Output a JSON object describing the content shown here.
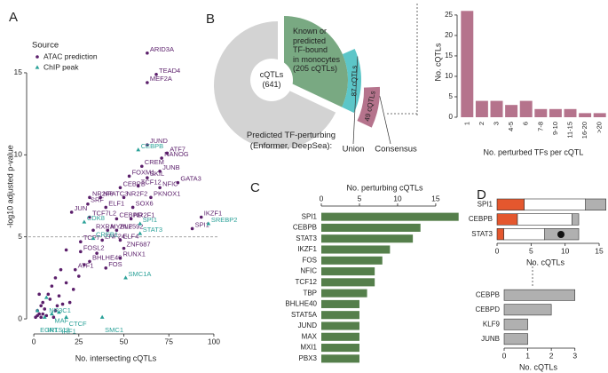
{
  "chart_data": [
    {
      "type": "scatter",
      "panel": "A",
      "xlabel": "No. intersecting cQTLs",
      "ylabel": "-log10 adjusted p-value",
      "xlim": [
        -3,
        102
      ],
      "ylim": [
        -0.7,
        17
      ],
      "xticks": [
        0,
        25,
        50,
        75,
        100
      ],
      "yticks": [
        0,
        5,
        10,
        15
      ],
      "threshold": 5,
      "legend_title": "Source",
      "series": [
        {
          "name": "ATAC prediction",
          "color": "#5b1f6b",
          "marker": "circle",
          "x": [
            63,
            68,
            63,
            63,
            74,
            71,
            70,
            60,
            63,
            53,
            58,
            70,
            80,
            48,
            31,
            37,
            50,
            65,
            30,
            40,
            55,
            21,
            31,
            46,
            54,
            93,
            33,
            41,
            46,
            88,
            26,
            38,
            48,
            50,
            26,
            31,
            48,
            23,
            40,
            12,
            15,
            18,
            22,
            8,
            10,
            5,
            6,
            3,
            4,
            2,
            7,
            9,
            14,
            16,
            20,
            25,
            28,
            12,
            3,
            18,
            35,
            1,
            2,
            4,
            5,
            11,
            13
          ],
          "values": [
            16.2,
            14.9,
            14.4,
            10.6,
            10.1,
            9.8,
            9.0,
            9.3,
            8.6,
            8.7,
            8.1,
            8.0,
            8.3,
            8.0,
            7.4,
            7.4,
            7.4,
            7.4,
            7.0,
            6.8,
            6.8,
            6.5,
            6.2,
            6.1,
            6.1,
            6.2,
            5.4,
            5.4,
            5.4,
            5.5,
            4.7,
            4.8,
            4.8,
            4.3,
            4.1,
            3.5,
            3.7,
            3.0,
            3.1,
            2.5,
            3.0,
            2.2,
            1.8,
            1.5,
            2.0,
            1.0,
            0.6,
            0.3,
            0.8,
            0.5,
            0.2,
            1.2,
            1.4,
            0.9,
            1.0,
            2.6,
            3.3,
            0.5,
            1.5,
            4.2,
            4.0,
            0.1,
            0.2,
            0.1,
            0.3,
            0.1,
            0.8
          ],
          "labels": [
            "ARID3A",
            "TEAD4",
            "MEF2A",
            "JUND",
            "ATF7",
            "NANOG",
            "JUNB",
            "CREM",
            "SKIL",
            "FOXM1",
            "TCF12",
            "NFIC",
            "GATA3",
            "CEBPB",
            "NR2F6",
            "NFATC3",
            "NR2F2",
            "PKNOX1",
            "SRF",
            "ELF1",
            "SOX6",
            "JUN",
            "TCF7L2",
            "CEBPD",
            "NR2F1",
            "IKZF1",
            "RXRA",
            "MYBL2",
            "ZNF592",
            "SPI1",
            "TCF7",
            "ZNF24",
            "ELF4",
            "ZNF687",
            "FOSL2",
            "BHLHE40",
            "RUNX1",
            "ATF1",
            "FOS",
            null,
            null,
            null,
            null,
            null,
            null,
            null,
            null,
            null,
            null,
            null,
            null,
            null,
            null,
            null,
            null,
            null,
            null,
            null,
            null,
            null,
            null,
            null,
            null,
            null,
            null,
            null,
            null
          ]
        },
        {
          "name": "ChIP peak",
          "color": "#2aa198",
          "marker": "triangle",
          "x": [
            58,
            28,
            59,
            59,
            97,
            33,
            51,
            7,
            2,
            10,
            38,
            14,
            18,
            6
          ],
          "values": [
            10.3,
            5.9,
            5.8,
            5.2,
            5.8,
            4.9,
            2.5,
            1.3,
            0.5,
            0.3,
            0.1,
            0.4,
            0.1,
            0.1
          ],
          "labels": [
            "CEBPB",
            "CDK8",
            "SPI1",
            "STAT3",
            "SREBP2",
            "CREB1",
            "SMC1A",
            "NR3C1",
            "EGR1",
            "MAF",
            "SMC1",
            "IRF1",
            "CTCF",
            "INTS13"
          ]
        }
      ]
    },
    {
      "type": "pie",
      "panel": "B",
      "values": [
        641,
        205,
        87,
        49
      ],
      "value_labels": [
        "cQTLs\n(641)",
        "Known or\npredicted\nTF-bound\nin monocytes\n(205 cQTLs)",
        "87 cQTLs",
        "49 cQTLs"
      ],
      "colors": [
        "#d3d3d3",
        "#79a982",
        "#5cc6c8",
        "#b5738c"
      ],
      "annotation": "Predicted TF-perturbing\n(Enformer, DeepSea):",
      "ring_labels": [
        "Union",
        "Consensus"
      ]
    },
    {
      "type": "bar",
      "categories": [
        "1",
        "2",
        "3",
        "4-5",
        "6",
        "7-8",
        "9-10",
        "11-15",
        "16-20",
        ">20"
      ],
      "values": [
        26,
        4,
        4,
        3,
        4,
        2,
        2,
        2,
        1,
        1
      ],
      "color": "#b5738c",
      "ylim": [
        0,
        26.5
      ],
      "yticks": [
        0,
        5,
        10,
        15,
        20,
        25
      ],
      "ylabel": "No. cQTLs",
      "xlabel": "No. perturbed TFs per cQTL"
    },
    {
      "type": "barh",
      "panel": "C",
      "categories": [
        "SPI1",
        "CEBPB",
        "STAT3",
        "IKZF1",
        "FOS",
        "NFIC",
        "TCF12",
        "TBP",
        "BHLHE40",
        "STAT5A",
        "JUND",
        "MAX",
        "MXI1",
        "PBX3"
      ],
      "values": [
        18,
        13,
        12,
        9,
        8,
        7,
        7,
        6,
        5,
        5,
        5,
        5,
        5,
        5
      ],
      "color": "#557f4b",
      "xlim": [
        0,
        18.5
      ],
      "xticks": [
        0,
        5,
        10,
        15
      ],
      "xlabel": "No. perturbing cQTLs"
    },
    {
      "type": "stacked_barh",
      "panel": "D",
      "categories": [
        "SPI1",
        "CEBPB",
        "STAT3"
      ],
      "series": [
        {
          "color": "#e4572e",
          "values": [
            4,
            3,
            1
          ]
        },
        {
          "color": "#ffffff",
          "values": [
            9,
            8,
            6
          ]
        },
        {
          "color": "#b0b0b0",
          "values": [
            3,
            1,
            5
          ]
        }
      ],
      "xlim": [
        0,
        16.3
      ],
      "xticks": [
        0,
        5,
        10,
        15
      ],
      "xlabel": "No. cQTLs"
    },
    {
      "type": "barh",
      "categories": [
        "CEBPB",
        "CEBPD",
        "KLF9",
        "JUNB"
      ],
      "values": [
        3,
        2,
        1,
        1
      ],
      "color": "#b0b0b0",
      "xlim": [
        0,
        3.5
      ],
      "xticks": [
        0,
        1,
        2,
        3
      ],
      "xlabel": "No. cQTLs"
    }
  ]
}
